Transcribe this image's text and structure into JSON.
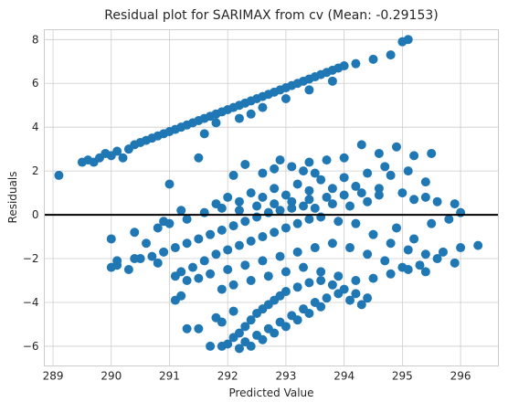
{
  "chart_data": {
    "type": "scatter",
    "title": "Residual plot for SARIMAX from cv (Mean: -0.29153)",
    "xlabel": "Predicted Value",
    "ylabel": "Residuals",
    "xlim": [
      288.85,
      296.65
    ],
    "ylim": [
      -6.9,
      8.45
    ],
    "xticks": [
      289,
      290,
      291,
      292,
      293,
      294,
      295,
      296
    ],
    "yticks": [
      -6,
      -4,
      -2,
      0,
      2,
      4,
      6,
      8
    ],
    "grid": true,
    "reference_line": {
      "y": 0,
      "color": "#000000"
    },
    "marker_color": "#1f77b4",
    "points": [
      [
        289.1,
        1.8
      ],
      [
        289.5,
        2.4
      ],
      [
        289.6,
        2.5
      ],
      [
        289.7,
        2.4
      ],
      [
        289.8,
        2.6
      ],
      [
        289.9,
        2.8
      ],
      [
        290.0,
        2.7
      ],
      [
        290.1,
        2.9
      ],
      [
        290.2,
        2.6
      ],
      [
        290.3,
        3.0
      ],
      [
        290.4,
        3.2
      ],
      [
        290.5,
        3.3
      ],
      [
        290.6,
        3.4
      ],
      [
        290.7,
        3.5
      ],
      [
        290.8,
        3.6
      ],
      [
        290.9,
        3.7
      ],
      [
        291.0,
        3.8
      ],
      [
        291.1,
        3.9
      ],
      [
        291.2,
        4.0
      ],
      [
        291.3,
        4.1
      ],
      [
        291.4,
        4.2
      ],
      [
        291.5,
        4.3
      ],
      [
        291.6,
        4.4
      ],
      [
        291.7,
        4.5
      ],
      [
        291.8,
        4.6
      ],
      [
        291.9,
        4.7
      ],
      [
        292.0,
        4.8
      ],
      [
        292.1,
        4.9
      ],
      [
        292.2,
        5.0
      ],
      [
        292.3,
        5.1
      ],
      [
        292.4,
        5.2
      ],
      [
        292.5,
        5.3
      ],
      [
        292.6,
        5.4
      ],
      [
        292.7,
        5.5
      ],
      [
        292.8,
        5.6
      ],
      [
        292.9,
        5.7
      ],
      [
        293.0,
        5.8
      ],
      [
        293.1,
        5.9
      ],
      [
        293.2,
        6.0
      ],
      [
        293.3,
        6.1
      ],
      [
        293.4,
        6.2
      ],
      [
        293.5,
        6.3
      ],
      [
        293.6,
        6.4
      ],
      [
        293.7,
        6.5
      ],
      [
        293.8,
        6.6
      ],
      [
        293.9,
        6.7
      ],
      [
        294.0,
        6.8
      ],
      [
        294.2,
        6.9
      ],
      [
        294.5,
        7.1
      ],
      [
        294.8,
        7.3
      ],
      [
        295.0,
        7.9
      ],
      [
        295.1,
        8.0
      ],
      [
        291.8,
        4.2
      ],
      [
        292.2,
        4.4
      ],
      [
        292.6,
        4.9
      ],
      [
        293.0,
        5.3
      ],
      [
        293.4,
        5.7
      ],
      [
        293.8,
        6.1
      ],
      [
        291.6,
        3.7
      ],
      [
        292.4,
        4.6
      ],
      [
        291.5,
        2.6
      ],
      [
        292.1,
        1.8
      ],
      [
        292.3,
        2.3
      ],
      [
        292.6,
        1.9
      ],
      [
        292.8,
        2.1
      ],
      [
        293.1,
        2.2
      ],
      [
        293.4,
        2.4
      ],
      [
        293.7,
        2.5
      ],
      [
        294.0,
        2.6
      ],
      [
        294.3,
        3.2
      ],
      [
        294.6,
        2.8
      ],
      [
        294.9,
        3.1
      ],
      [
        295.2,
        2.7
      ],
      [
        295.5,
        2.8
      ],
      [
        295.4,
        1.5
      ],
      [
        292.0,
        0.8
      ],
      [
        292.4,
        1.0
      ],
      [
        292.8,
        1.2
      ],
      [
        293.2,
        1.4
      ],
      [
        293.6,
        1.6
      ],
      [
        294.0,
        1.7
      ],
      [
        294.4,
        1.9
      ],
      [
        294.8,
        1.8
      ],
      [
        295.1,
        2.0
      ],
      [
        291.8,
        0.5
      ],
      [
        291.2,
        0.2
      ],
      [
        290.9,
        -0.3
      ],
      [
        291.0,
        1.4
      ],
      [
        292.2,
        0.6
      ],
      [
        292.6,
        0.8
      ],
      [
        293.0,
        0.9
      ],
      [
        293.4,
        1.1
      ],
      [
        293.8,
        1.2
      ],
      [
        294.2,
        1.3
      ],
      [
        294.6,
        1.2
      ],
      [
        295.0,
        1.0
      ],
      [
        295.4,
        0.8
      ],
      [
        295.6,
        0.6
      ],
      [
        290.0,
        -1.1
      ],
      [
        290.4,
        -0.8
      ],
      [
        290.6,
        -1.3
      ],
      [
        290.8,
        -0.6
      ],
      [
        291.0,
        -0.4
      ],
      [
        291.3,
        -0.2
      ],
      [
        291.6,
        0.1
      ],
      [
        291.9,
        0.3
      ],
      [
        292.2,
        0.2
      ],
      [
        292.5,
        0.4
      ],
      [
        292.8,
        0.5
      ],
      [
        293.1,
        0.6
      ],
      [
        293.4,
        0.7
      ],
      [
        293.7,
        0.8
      ],
      [
        294.0,
        0.9
      ],
      [
        294.3,
        1.0
      ],
      [
        294.6,
        0.9
      ],
      [
        295.2,
        0.7
      ],
      [
        290.0,
        -2.4
      ],
      [
        290.1,
        -2.3
      ],
      [
        290.3,
        -2.5
      ],
      [
        290.5,
        -2.0
      ],
      [
        290.7,
        -1.9
      ],
      [
        290.9,
        -1.7
      ],
      [
        291.1,
        -1.5
      ],
      [
        291.3,
        -1.3
      ],
      [
        291.5,
        -1.1
      ],
      [
        291.7,
        -0.9
      ],
      [
        291.9,
        -0.7
      ],
      [
        292.1,
        -0.5
      ],
      [
        292.3,
        -0.3
      ],
      [
        292.5,
        -0.1
      ],
      [
        292.7,
        0.1
      ],
      [
        292.9,
        0.2
      ],
      [
        293.1,
        0.3
      ],
      [
        293.3,
        0.4
      ],
      [
        293.5,
        0.3
      ],
      [
        293.8,
        0.5
      ],
      [
        294.1,
        0.4
      ],
      [
        294.4,
        0.6
      ],
      [
        291.2,
        -2.6
      ],
      [
        291.4,
        -2.4
      ],
      [
        291.6,
        -2.1
      ],
      [
        291.8,
        -1.8
      ],
      [
        292.0,
        -1.6
      ],
      [
        292.2,
        -1.4
      ],
      [
        292.4,
        -1.2
      ],
      [
        292.6,
        -1.0
      ],
      [
        292.8,
        -0.8
      ],
      [
        293.0,
        -0.6
      ],
      [
        293.2,
        -0.4
      ],
      [
        293.4,
        -0.2
      ],
      [
        293.6,
        -0.1
      ],
      [
        293.9,
        -0.3
      ],
      [
        294.2,
        -0.4
      ],
      [
        294.5,
        -0.9
      ],
      [
        294.8,
        -1.3
      ],
      [
        295.1,
        -1.6
      ],
      [
        295.4,
        -1.8
      ],
      [
        295.7,
        -1.7
      ],
      [
        296.0,
        -1.5
      ],
      [
        296.3,
        -1.4
      ],
      [
        291.1,
        -2.8
      ],
      [
        291.3,
        -3.0
      ],
      [
        291.5,
        -2.9
      ],
      [
        291.7,
        -2.7
      ],
      [
        292.0,
        -2.5
      ],
      [
        292.3,
        -2.3
      ],
      [
        292.6,
        -2.1
      ],
      [
        292.9,
        -1.9
      ],
      [
        293.2,
        -1.7
      ],
      [
        293.5,
        -1.5
      ],
      [
        293.8,
        -1.3
      ],
      [
        294.1,
        -1.5
      ],
      [
        294.4,
        -1.8
      ],
      [
        294.7,
        -2.1
      ],
      [
        295.0,
        -2.4
      ],
      [
        295.3,
        -2.3
      ],
      [
        295.6,
        -2.0
      ],
      [
        295.9,
        -2.2
      ],
      [
        291.1,
        -3.9
      ],
      [
        291.2,
        -3.7
      ],
      [
        291.9,
        -3.4
      ],
      [
        292.1,
        -3.2
      ],
      [
        292.4,
        -3.0
      ],
      [
        292.7,
        -2.8
      ],
      [
        293.0,
        -2.6
      ],
      [
        293.3,
        -2.4
      ],
      [
        293.6,
        -2.6
      ],
      [
        293.9,
        -2.8
      ],
      [
        294.2,
        -3.0
      ],
      [
        294.5,
        -2.9
      ],
      [
        294.8,
        -2.7
      ],
      [
        295.1,
        -2.5
      ],
      [
        295.4,
        -2.6
      ],
      [
        291.5,
        -5.2
      ],
      [
        291.3,
        -5.2
      ],
      [
        291.8,
        -4.7
      ],
      [
        291.9,
        -6.0
      ],
      [
        292.0,
        -5.9
      ],
      [
        292.1,
        -5.6
      ],
      [
        292.2,
        -5.4
      ],
      [
        292.3,
        -5.1
      ],
      [
        292.4,
        -4.8
      ],
      [
        292.5,
        -4.5
      ],
      [
        292.6,
        -4.3
      ],
      [
        292.7,
        -4.1
      ],
      [
        292.8,
        -3.9
      ],
      [
        292.9,
        -3.7
      ],
      [
        293.0,
        -3.5
      ],
      [
        293.2,
        -3.3
      ],
      [
        293.4,
        -3.1
      ],
      [
        293.6,
        -3.0
      ],
      [
        293.8,
        -3.2
      ],
      [
        294.0,
        -3.4
      ],
      [
        294.2,
        -3.6
      ],
      [
        294.4,
        -3.8
      ],
      [
        292.2,
        -6.1
      ],
      [
        292.3,
        -5.8
      ],
      [
        292.5,
        -5.5
      ],
      [
        292.7,
        -5.2
      ],
      [
        292.9,
        -4.9
      ],
      [
        293.1,
        -4.6
      ],
      [
        293.3,
        -4.3
      ],
      [
        293.5,
        -4.0
      ],
      [
        293.7,
        -3.8
      ],
      [
        293.9,
        -3.6
      ],
      [
        294.1,
        -3.9
      ],
      [
        294.3,
        -4.1
      ],
      [
        292.4,
        -6.0
      ],
      [
        292.6,
        -5.7
      ],
      [
        292.8,
        -5.4
      ],
      [
        293.0,
        -5.1
      ],
      [
        293.2,
        -4.8
      ],
      [
        293.4,
        -4.5
      ],
      [
        293.6,
        -4.2
      ],
      [
        291.7,
        -6.0
      ],
      [
        290.1,
        -2.1
      ],
      [
        290.4,
        -2.0
      ],
      [
        290.8,
        -2.2
      ],
      [
        291.9,
        -4.9
      ],
      [
        292.1,
        -4.4
      ],
      [
        295.5,
        -0.4
      ],
      [
        295.8,
        -0.2
      ],
      [
        296.0,
        0.1
      ],
      [
        295.9,
        0.5
      ],
      [
        295.2,
        -1.1
      ],
      [
        294.9,
        -0.6
      ],
      [
        293.5,
        1.9
      ],
      [
        292.9,
        2.5
      ],
      [
        293.3,
        2.0
      ],
      [
        294.7,
        2.2
      ]
    ]
  }
}
